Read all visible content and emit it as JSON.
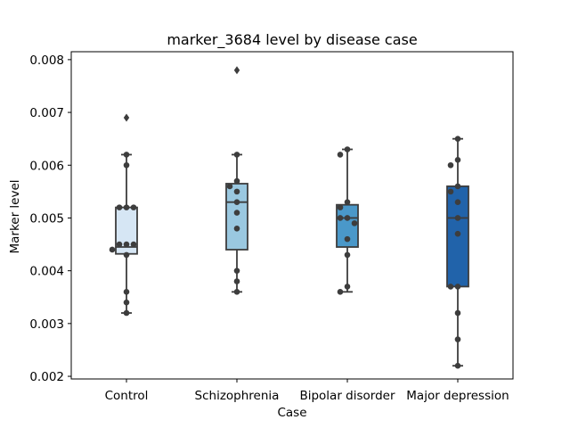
{
  "chart_data": {
    "type": "box",
    "title": "marker_3684 level by disease case",
    "xlabel": "Case",
    "ylabel": "Marker level",
    "ylim": [
      0.00195,
      0.00815
    ],
    "yticks": [
      "0.002",
      "0.003",
      "0.004",
      "0.005",
      "0.006",
      "0.007",
      "0.008"
    ],
    "ytick_values": [
      0.002,
      0.003,
      0.004,
      0.005,
      0.006,
      0.007,
      0.008
    ],
    "grid": false,
    "legend": "none",
    "categories": [
      "Control",
      "Schizophrenia",
      "Bipolar disorder",
      "Major depression"
    ],
    "boxes": [
      {
        "category": "Control",
        "color": "#d6e6f4",
        "q1": 0.00432,
        "median": 0.00445,
        "q3": 0.0052,
        "whisker_low": 0.0032,
        "whisker_high": 0.0062,
        "outliers": [
          0.0069
        ],
        "points": [
          0.0062,
          0.006,
          0.0052,
          0.0052,
          0.0052,
          0.0045,
          0.0045,
          0.0045,
          0.0044,
          0.0043,
          0.0036,
          0.0034,
          0.0032
        ]
      },
      {
        "category": "Schizophrenia",
        "color": "#9ac8e0",
        "q1": 0.0044,
        "median": 0.0053,
        "q3": 0.00565,
        "whisker_low": 0.0036,
        "whisker_high": 0.0062,
        "outliers": [
          0.0078
        ],
        "points": [
          0.0062,
          0.0057,
          0.0056,
          0.0055,
          0.0053,
          0.0051,
          0.0048,
          0.004,
          0.0038,
          0.0036
        ]
      },
      {
        "category": "Bipolar disorder",
        "color": "#4a98c9",
        "q1": 0.00445,
        "median": 0.005,
        "q3": 0.00525,
        "whisker_low": 0.0036,
        "whisker_high": 0.0063,
        "outliers": [],
        "points": [
          0.0063,
          0.0062,
          0.0053,
          0.0052,
          0.005,
          0.005,
          0.0049,
          0.0046,
          0.0043,
          0.0037,
          0.0036
        ]
      },
      {
        "category": "Major depression",
        "color": "#2163aa",
        "q1": 0.0037,
        "median": 0.005,
        "q3": 0.0056,
        "whisker_low": 0.0022,
        "whisker_high": 0.0065,
        "outliers": [],
        "points": [
          0.0065,
          0.0061,
          0.006,
          0.0056,
          0.0055,
          0.0053,
          0.005,
          0.0047,
          0.0037,
          0.0037,
          0.0032,
          0.0027,
          0.0022
        ]
      }
    ]
  }
}
